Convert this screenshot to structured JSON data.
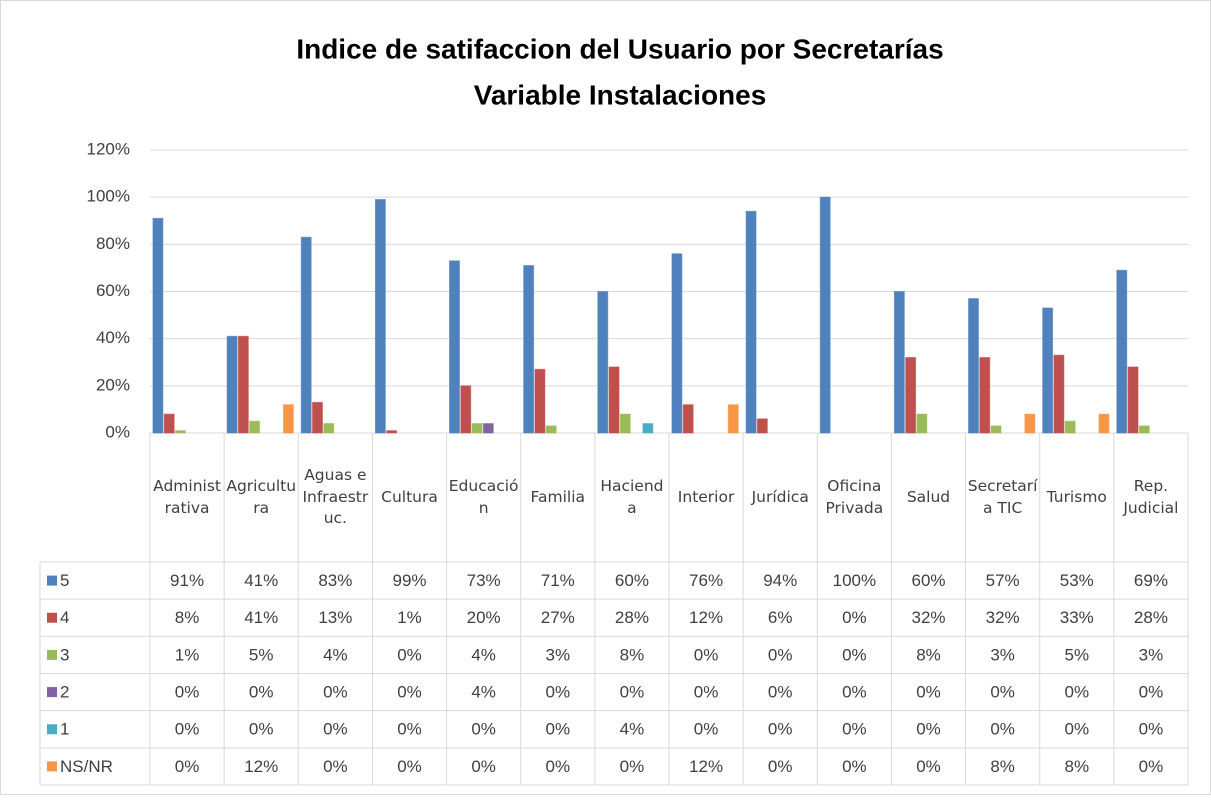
{
  "chart_data": {
    "type": "bar",
    "title": "Indice de satifaccion del Usuario por Secretarías",
    "subtitle": "Variable Instalaciones",
    "categories": [
      "Administrativa",
      "Agricultura",
      "Aguas e Infraestruc.",
      "Cultura",
      "Educación",
      "Familia",
      "Hacienda",
      "Interior",
      "Jurídica",
      "Oficina Privada",
      "Salud",
      "Secretaría TIC",
      "Turismo",
      "Rep. Judicial"
    ],
    "series": [
      {
        "name": "5",
        "color": "#4f81bd",
        "values": [
          91,
          41,
          83,
          99,
          73,
          71,
          60,
          76,
          94,
          100,
          60,
          57,
          53,
          69
        ],
        "value_labels": [
          "91%",
          "41%",
          "83%",
          "99%",
          "73%",
          "71%",
          "60%",
          "76%",
          "94%",
          "100%",
          "60%",
          "57%",
          "53%",
          "69%"
        ]
      },
      {
        "name": "4",
        "color": "#c0504d",
        "values": [
          8,
          41,
          13,
          1,
          20,
          27,
          28,
          12,
          6,
          0,
          32,
          32,
          33,
          28
        ],
        "value_labels": [
          "8%",
          "41%",
          "13%",
          "1%",
          "20%",
          "27%",
          "28%",
          "12%",
          "6%",
          "0%",
          "32%",
          "32%",
          "33%",
          "28%"
        ]
      },
      {
        "name": "3",
        "color": "#9bbb59",
        "values": [
          1,
          5,
          4,
          0,
          4,
          3,
          8,
          0,
          0,
          0,
          8,
          3,
          5,
          3
        ],
        "value_labels": [
          "1%",
          "5%",
          "4%",
          "0%",
          "4%",
          "3%",
          "8%",
          "0%",
          "0%",
          "0%",
          "8%",
          "3%",
          "5%",
          "3%"
        ]
      },
      {
        "name": "2",
        "color": "#8064a2",
        "values": [
          0,
          0,
          0,
          0,
          4,
          0,
          0,
          0,
          0,
          0,
          0,
          0,
          0,
          0
        ],
        "value_labels": [
          "0%",
          "0%",
          "0%",
          "0%",
          "4%",
          "0%",
          "0%",
          "0%",
          "0%",
          "0%",
          "0%",
          "0%",
          "0%",
          "0%"
        ]
      },
      {
        "name": "1",
        "color": "#4bacc6",
        "values": [
          0,
          0,
          0,
          0,
          0,
          0,
          4,
          0,
          0,
          0,
          0,
          0,
          0,
          0
        ],
        "value_labels": [
          "0%",
          "0%",
          "0%",
          "0%",
          "0%",
          "0%",
          "4%",
          "0%",
          "0%",
          "0%",
          "0%",
          "0%",
          "0%",
          "0%"
        ]
      },
      {
        "name": "NS/NR",
        "color": "#f79646",
        "values": [
          0,
          12,
          0,
          0,
          0,
          0,
          0,
          12,
          0,
          0,
          0,
          8,
          8,
          0
        ],
        "value_labels": [
          "0%",
          "12%",
          "0%",
          "0%",
          "0%",
          "0%",
          "0%",
          "12%",
          "0%",
          "0%",
          "0%",
          "8%",
          "8%",
          "0%"
        ]
      }
    ],
    "ylim": [
      0,
      120
    ],
    "yticks": [
      {
        "value": 0,
        "label": "0%"
      },
      {
        "value": 20,
        "label": "20%"
      },
      {
        "value": 40,
        "label": "40%"
      },
      {
        "value": 60,
        "label": "60%"
      },
      {
        "value": 80,
        "label": "80%"
      },
      {
        "value": 100,
        "label": "100%"
      },
      {
        "value": 120,
        "label": "120%"
      }
    ],
    "grid": true
  }
}
